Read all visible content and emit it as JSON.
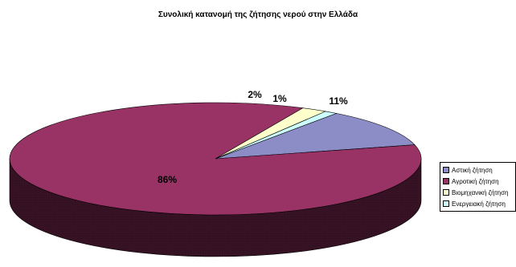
{
  "chart_data": {
    "type": "pie",
    "title": "Συνολική κατανομή της ζήτησης νερού στην Ελλάδα",
    "categories": [
      "Αστική ζήτηση",
      "Αγροτική ζήτηση",
      "Βιομηχανική ζήτηση",
      "Ενεργειακή ζήτηση"
    ],
    "values": [
      11,
      86,
      2,
      1
    ],
    "labels": [
      "11%",
      "86%",
      "2%",
      "1%"
    ],
    "colors": [
      "#8c8cc6",
      "#993366",
      "#ffffcc",
      "#ccffff"
    ],
    "legend_position": "right",
    "three_d": true
  }
}
